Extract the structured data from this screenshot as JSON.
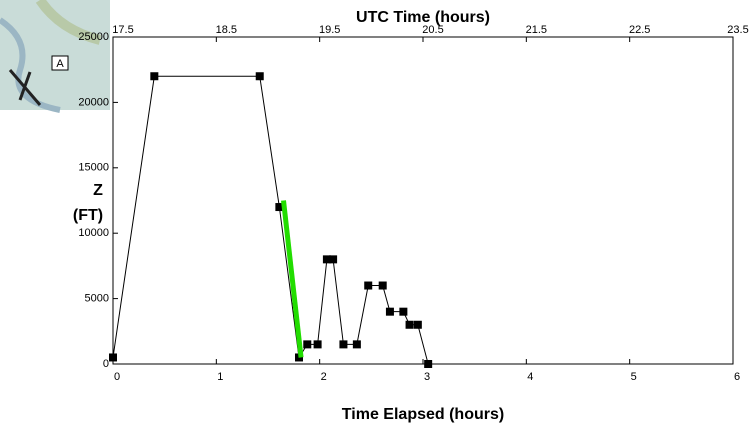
{
  "map": {
    "label": "A"
  },
  "chart_data": {
    "type": "line",
    "x2label": "UTC Time (hours)",
    "xlabel": "Time Elapsed (hours)",
    "ylabel": [
      "Z",
      "(FT)"
    ],
    "x": [
      0,
      0.4,
      1.42,
      1.61,
      1.8,
      1.88,
      1.98,
      2.07,
      2.13,
      2.23,
      2.36,
      2.47,
      2.61,
      2.68,
      2.81,
      2.87,
      2.95,
      3.05
    ],
    "series": [
      {
        "color": "#000000",
        "values": [
          500,
          22000,
          22000,
          12000,
          500,
          1500,
          1500,
          8000,
          8000,
          1500,
          1500,
          6000,
          6000,
          4000,
          4000,
          3000,
          3000,
          0
        ]
      }
    ],
    "highlight": {
      "x": [
        1.65,
        1.82
      ],
      "values": [
        12500,
        500
      ],
      "color": "#22dd00"
    },
    "xlim": [
      0,
      6
    ],
    "xticks": [
      0,
      1,
      2,
      3,
      4,
      5,
      6
    ],
    "x2lim": [
      17.5,
      23.5
    ],
    "x2ticks": [
      17.5,
      18.5,
      19.5,
      20.5,
      21.5,
      22.5,
      23.5
    ],
    "ylim": [
      0,
      25000
    ],
    "yticks": [
      0,
      5000,
      10000,
      15000,
      20000,
      25000
    ]
  }
}
